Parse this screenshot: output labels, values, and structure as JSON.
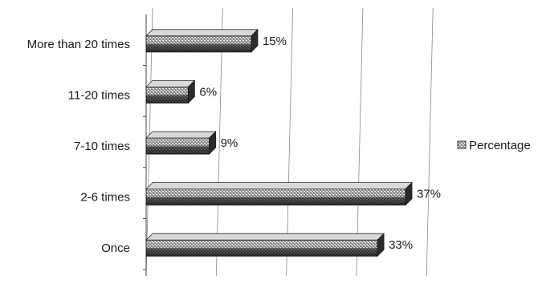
{
  "chart_data": {
    "type": "bar",
    "orientation": "horizontal",
    "style": "3d",
    "categories": [
      "Once",
      "2-6 times",
      "7-10 times",
      "11-20 times",
      "More than 20 times"
    ],
    "series": [
      {
        "name": "Percentage",
        "values": [
          33,
          37,
          9,
          6,
          15
        ]
      }
    ],
    "data_labels": [
      "33%",
      "37%",
      "9%",
      "6%",
      "15%"
    ],
    "xlim": [
      0,
      40
    ],
    "grid": true,
    "legend": "right",
    "colors": {
      "bar": "#6b6b6b",
      "bar_light": "#d9d9d9",
      "bar_dark": "#2b2b2b",
      "grid": "#8a8a8a"
    }
  }
}
